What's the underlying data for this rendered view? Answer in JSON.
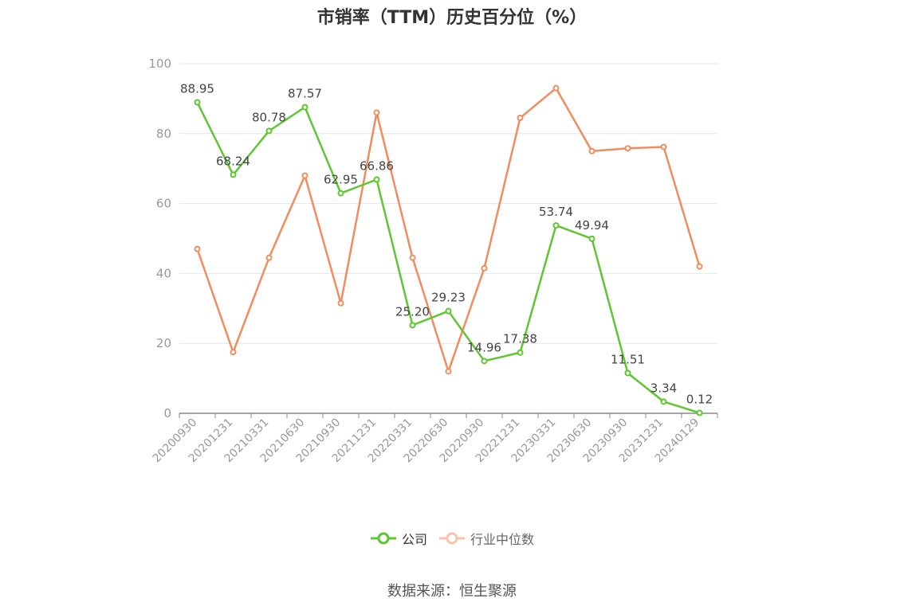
{
  "chart_data": {
    "type": "line",
    "title": "市销率（TTM）历史百分位（%）",
    "categories": [
      "20200930",
      "20201231",
      "20210331",
      "20210630",
      "20210930",
      "20211231",
      "20220331",
      "20220630",
      "20220930",
      "20221231",
      "20230331",
      "20230630",
      "20230930",
      "20231231",
      "20240129"
    ],
    "series": [
      {
        "name": "公司",
        "color": "#5cc72f",
        "values": [
          88.95,
          68.24,
          80.78,
          87.57,
          62.95,
          66.86,
          25.2,
          29.23,
          14.96,
          17.38,
          53.74,
          49.94,
          11.51,
          3.34,
          0.12
        ],
        "labels": [
          "88.95",
          "68.24",
          "80.78",
          "87.57",
          "62.95",
          "66.86",
          "25.20",
          "29.23",
          "14.96",
          "17.38",
          "53.74",
          "49.94",
          "11.51",
          "3.34",
          "0.12"
        ]
      },
      {
        "name": "行业中位数",
        "color": "#f28c5c",
        "values": [
          47,
          17.5,
          44.5,
          68,
          31.5,
          86,
          44.5,
          12,
          41.5,
          84.5,
          93,
          75,
          75.8,
          76.2,
          42
        ]
      }
    ],
    "yticks": [
      "0",
      "20",
      "40",
      "60",
      "80",
      "100"
    ],
    "ylim": [
      0,
      100
    ],
    "grid": true,
    "legend_position": "bottom"
  },
  "legend": {
    "company": "公司",
    "industry": "行业中位数"
  },
  "source": "数据来源：恒生聚源"
}
